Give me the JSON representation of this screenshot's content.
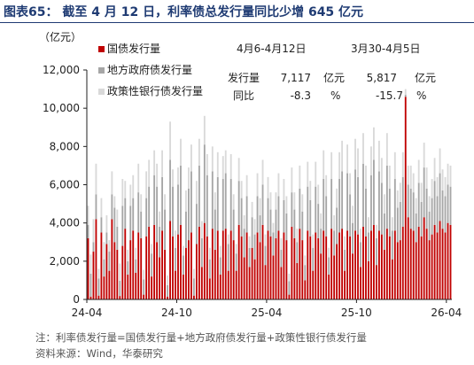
{
  "header": {
    "title": "图表65：  截至 4 月 12 日，利率债总发行量同比少增 645 亿元",
    "unit": "（亿元）"
  },
  "colors": {
    "guozhai": "#c00000",
    "difang": "#a6a6a6",
    "zhengce": "#d9d9d9",
    "title": "#1f3b73"
  },
  "stats": {
    "col1_header": "4月6-4月12日",
    "col2_header": "3月30-4月5日",
    "row1_label": "发行量",
    "row1_val1": "7,117",
    "row1_unit1": "亿元",
    "row1_val2": "5,817",
    "row1_unit2": "亿元",
    "row2_label": "同比",
    "row2_val1": "-8.3",
    "row2_unit1": "%",
    "row2_val2": "-15.7",
    "row2_unit2": "%"
  },
  "footer": {
    "note": "注：利率债发行量=国债发行量+地方政府债发行量+政策性银行债发行量",
    "source": "资料来源：Wind，华泰研究"
  },
  "chart_data": {
    "type": "bar",
    "stacked": true,
    "x_tick_labels": [
      "24-04",
      "24-10",
      "25-04",
      "25-10",
      "26-04"
    ],
    "ylim": [
      0,
      12000
    ],
    "y_ticks": [
      0,
      2000,
      4000,
      6000,
      8000,
      10000,
      12000
    ],
    "y_tick_labels": [
      "0",
      "2,000",
      "4,000",
      "6,000",
      "8,000",
      "10,000",
      "12,000"
    ],
    "legend": [
      "国债发行量",
      "地方政府债发行量",
      "政策性银行债发行量"
    ],
    "series": [
      {
        "name": "国债发行量",
        "values": [
          3200,
          150,
          2500,
          4200,
          200,
          3500,
          1200,
          2900,
          1500,
          4200,
          3000,
          2600,
          180,
          2800,
          3700,
          1300,
          3100,
          3600,
          1400,
          3500,
          3200,
          250,
          3300,
          3800,
          1200,
          3900,
          3000,
          2200,
          3600,
          2600,
          150,
          4100,
          3300,
          1500,
          3400,
          3900,
          1300,
          2700,
          3100,
          3500,
          200,
          2900,
          3800,
          1700,
          4000,
          3300,
          1100,
          3700,
          2600,
          3600,
          1300,
          3600,
          3700,
          1500,
          3600,
          3100,
          1500,
          3900,
          3300,
          2200,
          3500,
          1700,
          2700,
          2100,
          3500,
          3000,
          3900,
          1800,
          3600,
          3300,
          2300,
          3200,
          3600,
          1700,
          3500,
          3100,
          250,
          3800,
          3200,
          1900,
          3700,
          3100,
          1000,
          3600,
          3300,
          1500,
          3500,
          3200,
          2400,
          3600,
          3300,
          1300,
          3700,
          2300,
          2900,
          3500,
          3700,
          1500,
          3600,
          3300,
          2400,
          3600,
          3400,
          1700,
          3800,
          3300,
          2000,
          3600,
          3900,
          1800,
          3600,
          3400,
          2600,
          3700,
          3300,
          2100,
          3600,
          3000,
          3100,
          3800,
          10600,
          4300,
          3700,
          3600,
          3000,
          3800,
          3300,
          4300,
          3700,
          3100,
          3400,
          3900,
          3500,
          4100,
          3700,
          3500,
          4000,
          3900
        ]
      },
      {
        "name": "地方政府债发行量",
        "values": [
          700,
          1200,
          500,
          1300,
          900,
          800,
          900,
          600,
          1000,
          1300,
          1800,
          1200,
          800,
          2100,
          1600,
          700,
          1800,
          1700,
          700,
          2100,
          1400,
          800,
          2000,
          2100,
          1200,
          2600,
          2900,
          1600,
          2800,
          2100,
          600,
          3200,
          2600,
          1200,
          2600,
          3100,
          1000,
          1900,
          2700,
          3200,
          900,
          2100,
          3200,
          1500,
          4100,
          3200,
          1000,
          3000,
          2100,
          2800,
          900,
          2700,
          2900,
          1400,
          2700,
          1600,
          900,
          2300,
          2000,
          1500,
          1900,
          1000,
          1600,
          1300,
          1900,
          1400,
          2100,
          1000,
          1700,
          1400,
          1200,
          1500,
          1800,
          900,
          1700,
          1400,
          700,
          1800,
          1500,
          1100,
          2100,
          1500,
          800,
          2300,
          1900,
          1200,
          2400,
          1800,
          1300,
          2700,
          2100,
          900,
          2600,
          1300,
          1900,
          2800,
          3000,
          1100,
          3000,
          2200,
          1600,
          3200,
          3000,
          1300,
          3300,
          2500,
          1500,
          2900,
          3400,
          1400,
          3100,
          2700,
          1900,
          3300,
          2500,
          1500,
          2700,
          1800,
          2000,
          2600,
          100,
          1700,
          2100,
          2000,
          1500,
          2300,
          1800,
          2600,
          2100,
          1500,
          1900,
          2300,
          1900,
          2500,
          2000,
          1900,
          2000,
          2000
        ]
      },
      {
        "name": "政策性银行债发行量",
        "values": [
          1000,
          1000,
          1200,
          1600,
          500,
          1000,
          900,
          900,
          600,
          1200,
          600,
          900,
          900,
          1400,
          900,
          600,
          1100,
          1200,
          600,
          1500,
          900,
          500,
          1400,
          1400,
          500,
          1300,
          1200,
          800,
          1400,
          800,
          500,
          2000,
          900,
          900,
          900,
          1400,
          500,
          1100,
          1100,
          1400,
          500,
          1200,
          1400,
          900,
          1500,
          1100,
          600,
          1300,
          900,
          1300,
          600,
          1200,
          1200,
          500,
          1300,
          800,
          500,
          1200,
          900,
          700,
          1100,
          600,
          800,
          800,
          1200,
          900,
          1300,
          600,
          1100,
          900,
          500,
          900,
          1200,
          600,
          1100,
          900,
          400,
          1300,
          900,
          700,
          1200,
          900,
          500,
          1300,
          1000,
          700,
          1300,
          1000,
          800,
          1500,
          1100,
          500,
          1400,
          800,
          1000,
          1400,
          1600,
          700,
          1500,
          1100,
          900,
          1600,
          1500,
          700,
          1600,
          1200,
          800,
          1500,
          1700,
          700,
          1600,
          1300,
          1000,
          1700,
          1200,
          700,
          1400,
          900,
          1000,
          1300,
          300,
          1000,
          1200,
          1000,
          800,
          1200,
          1000,
          1300,
          1100,
          800,
          1000,
          1200,
          1000,
          1300,
          1100,
          1000,
          1100,
          1100
        ]
      }
    ]
  }
}
